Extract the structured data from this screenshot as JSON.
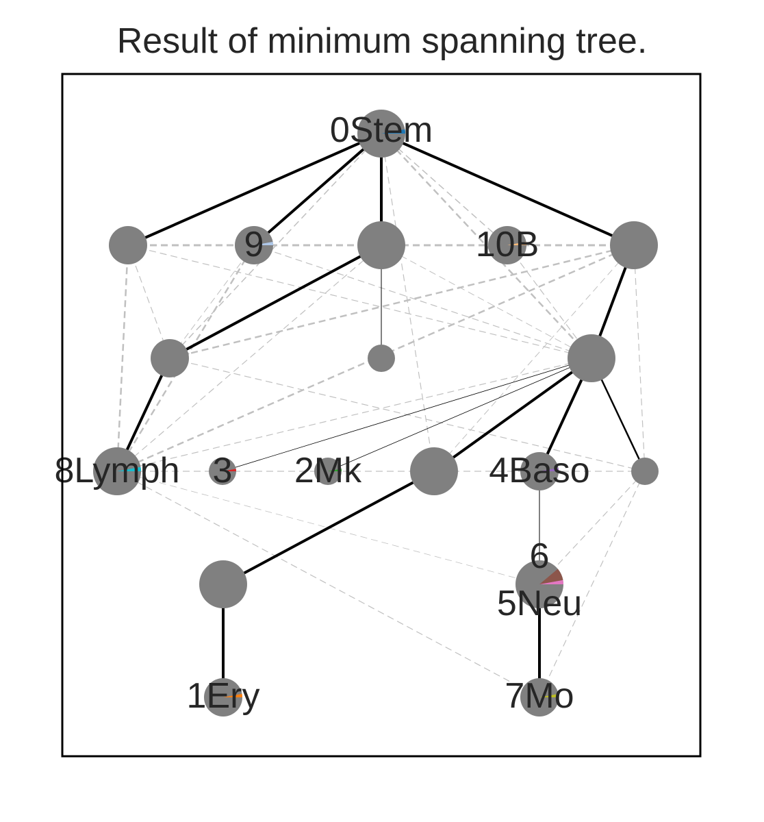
{
  "title": "Result of minimum spanning tree.",
  "colors": {
    "node": "#808080",
    "frame": "#000000",
    "tree_edge": "#000000",
    "other_edge": "#c0c0c0",
    "text": "#262626"
  },
  "nodes": [
    {
      "id": "n0",
      "label": "0Stem",
      "color": "#1f77b4",
      "large": true
    },
    {
      "id": "nL1",
      "label": ""
    },
    {
      "id": "n9",
      "label": "9",
      "color": "#aec7e8"
    },
    {
      "id": "nC1",
      "label": "",
      "large": true
    },
    {
      "id": "n10",
      "label": "10B",
      "color": "#ffbb78"
    },
    {
      "id": "nR1",
      "label": "",
      "large": true
    },
    {
      "id": "nL2",
      "label": ""
    },
    {
      "id": "nC2",
      "label": "",
      "small": true
    },
    {
      "id": "nR2",
      "label": "",
      "large": true
    },
    {
      "id": "n8",
      "label": "8Lymph",
      "color": "#17becf",
      "large": true
    },
    {
      "id": "n3",
      "label": "3",
      "color": "#d62728",
      "small": true
    },
    {
      "id": "n2",
      "label": "2Mk",
      "color": "#2ca02c",
      "small": true
    },
    {
      "id": "nC3",
      "label": "",
      "large": true
    },
    {
      "id": "n4",
      "label": "4Baso",
      "color": "#9467bd"
    },
    {
      "id": "nR3",
      "label": "",
      "small": true
    },
    {
      "id": "nL4",
      "label": "",
      "large": true
    },
    {
      "id": "n56",
      "label": "6",
      "label2": "5Neu",
      "color": "#e377c2",
      "color2": "#8c564b",
      "large": true
    },
    {
      "id": "n1",
      "label": "1Ery",
      "color": "#ff7f0e"
    },
    {
      "id": "n7",
      "label": "7Mo",
      "color": "#bcbd22"
    }
  ]
}
